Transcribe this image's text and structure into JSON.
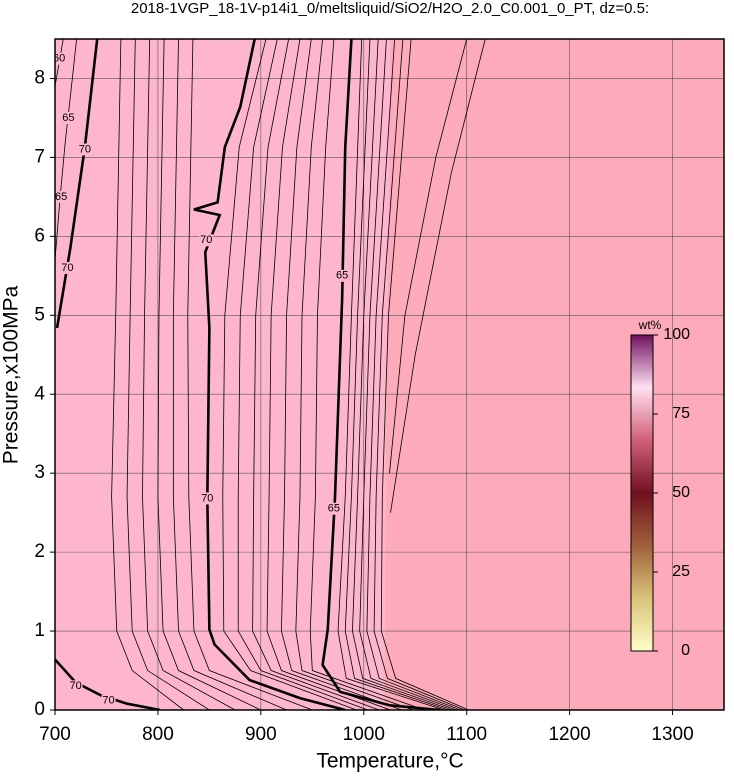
{
  "chart_data": {
    "type": "contour",
    "title": "2018-1VGP_18-1V-p14i1_0/meltsliquid/SiO2/H2O_2.0_C0.001_0_PT, dz=0.5:",
    "x_label": "Temperature,°C",
    "y_label": "Pressure,x100MPa",
    "xlim": [
      700,
      1350
    ],
    "ylim": [
      0,
      8.5
    ],
    "xticks": [
      700,
      800,
      900,
      1000,
      1100,
      1200,
      1300
    ],
    "yticks": [
      0,
      1,
      2,
      3,
      4,
      5,
      6,
      7,
      8
    ],
    "grid": true,
    "background": "#feb6cf",
    "regions": [
      {
        "color": "#fdaaba",
        "x": [
          1020,
          1022,
          1026,
          1350,
          1350
        ],
        "y": [
          0,
          4,
          8.5,
          8.5,
          0
        ]
      }
    ],
    "contours": [
      {
        "bold": true,
        "level": 70,
        "x": [
          894,
          880,
          865,
          858,
          835,
          860,
          846,
          850,
          848,
          850,
          855,
          889,
          938,
          982
        ],
        "y": [
          8.5,
          7.64,
          7.13,
          6.43,
          6.34,
          6.27,
          5.8,
          4.84,
          2.68,
          1.02,
          0.83,
          0.38,
          0.15,
          0
        ],
        "label_x": [
          847,
          848
        ],
        "label_y": [
          5.95,
          2.68
        ]
      },
      {
        "bold": true,
        "level": 65,
        "x": [
          988,
          982,
          979,
          972,
          965,
          960,
          977,
          1025,
          1074
        ],
        "y": [
          8.5,
          7.13,
          5.22,
          2.68,
          1.02,
          0.57,
          0.23,
          0.06,
          0
        ],
        "label_x": [
          979,
          971
        ],
        "label_y": [
          5.5,
          2.55
        ]
      },
      {
        "bold": true,
        "level": 70,
        "x": [
          702,
          715,
          729,
          741
        ],
        "y": [
          4.84,
          5.86,
          7.13,
          8.5
        ],
        "label_x": [
          712,
          729
        ],
        "label_y": [
          5.6,
          7.1
        ]
      },
      {
        "bold": true,
        "level": 70,
        "x": [
          700,
          720,
          744,
          770,
          802
        ],
        "y": [
          0.64,
          0.35,
          0.19,
          0.08,
          0
        ],
        "label_x": [
          720,
          752
        ],
        "label_y": [
          0.3,
          0.12
        ]
      },
      {
        "bold": false,
        "level": 65,
        "x": [
          700,
          705,
          710,
          716,
          721
        ],
        "y": [
          5.7,
          6.5,
          7.2,
          7.9,
          8.5
        ],
        "label_x": [
          706,
          713
        ],
        "label_y": [
          6.5,
          7.5
        ]
      },
      {
        "bold": false,
        "level": 60,
        "x": [
          700,
          704,
          708
        ],
        "y": [
          7.9,
          8.2,
          8.5
        ],
        "label_x": [
          704
        ],
        "label_y": [
          8.25
        ]
      },
      {
        "bold": false,
        "x": [
          905,
          879,
          865,
          863,
          864,
          890,
          993
        ],
        "y": [
          8.5,
          7.13,
          5,
          2.7,
          1,
          0.5,
          0
        ]
      },
      {
        "bold": false,
        "x": [
          916,
          893,
          880,
          878,
          878,
          900,
          1004
        ],
        "y": [
          8.5,
          7.13,
          5,
          2.7,
          1,
          0.5,
          0
        ]
      },
      {
        "bold": false,
        "x": [
          927,
          907,
          895,
          893,
          892,
          910,
          1015
        ],
        "y": [
          8.5,
          7.13,
          5,
          2.7,
          1,
          0.5,
          0
        ]
      },
      {
        "bold": false,
        "x": [
          938,
          921,
          910,
          908,
          906,
          920,
          1026
        ],
        "y": [
          8.5,
          7.13,
          5,
          2.7,
          1,
          0.5,
          0
        ]
      },
      {
        "bold": false,
        "x": [
          949,
          935,
          925,
          923,
          920,
          930,
          1037
        ],
        "y": [
          8.5,
          7.13,
          5,
          2.7,
          1,
          0.5,
          0
        ]
      },
      {
        "bold": false,
        "x": [
          960,
          949,
          940,
          938,
          934,
          940,
          1048
        ],
        "y": [
          8.5,
          7.13,
          5,
          2.7,
          1,
          0.5,
          0
        ]
      },
      {
        "bold": false,
        "x": [
          971,
          963,
          955,
          953,
          948,
          950,
          1059
        ],
        "y": [
          8.5,
          7.13,
          5,
          2.7,
          1,
          0.5,
          0
        ]
      },
      {
        "bold": false,
        "x": [
          998,
          988,
          982,
          975,
          983,
          1078
        ],
        "y": [
          8.5,
          5,
          2.7,
          1,
          0.4,
          0
        ]
      },
      {
        "bold": false,
        "x": [
          1006,
          994,
          988,
          982,
          991,
          1082
        ],
        "y": [
          8.5,
          5,
          2.7,
          1,
          0.4,
          0
        ]
      },
      {
        "bold": false,
        "x": [
          1014,
          1000,
          994,
          989,
          999,
          1086
        ],
        "y": [
          8.5,
          5,
          2.7,
          1,
          0.4,
          0
        ]
      },
      {
        "bold": false,
        "x": [
          1022,
          1006,
          1000,
          996,
          1007,
          1090
        ],
        "y": [
          8.5,
          5,
          2.7,
          1,
          0.4,
          0
        ]
      },
      {
        "bold": false,
        "x": [
          1030,
          1012,
          1006,
          1003,
          1015,
          1094
        ],
        "y": [
          8.5,
          5,
          2.7,
          1,
          0.4,
          0
        ]
      },
      {
        "bold": false,
        "x": [
          1038,
          1018,
          1012,
          1010,
          1023,
          1098
        ],
        "y": [
          8.5,
          5,
          2.7,
          1,
          0.4,
          0
        ]
      },
      {
        "bold": false,
        "x": [
          1046,
          1024,
          1018,
          1017,
          1031,
          1102
        ],
        "y": [
          8.5,
          5,
          2.7,
          1,
          0.4,
          0
        ]
      },
      {
        "bold": false,
        "x": [
          1025,
          1040,
          1070,
          1100
        ],
        "y": [
          3,
          5,
          7,
          8.5
        ]
      },
      {
        "bold": false,
        "x": [
          1026,
          1050,
          1085,
          1118
        ],
        "y": [
          2.5,
          4.5,
          6.8,
          8.5
        ]
      },
      {
        "bold": false,
        "x": [
          764,
          759,
          755,
          760,
          775,
          825
        ],
        "y": [
          8.5,
          5,
          2.7,
          1,
          0.5,
          0
        ]
      },
      {
        "bold": false,
        "x": [
          778,
          773,
          770,
          775,
          790,
          850
        ],
        "y": [
          8.5,
          5,
          2.7,
          1,
          0.5,
          0
        ]
      },
      {
        "bold": false,
        "x": [
          792,
          787,
          785,
          790,
          805,
          875
        ],
        "y": [
          8.5,
          5,
          2.7,
          1,
          0.5,
          0
        ]
      },
      {
        "bold": false,
        "x": [
          806,
          801,
          800,
          805,
          820,
          900
        ],
        "y": [
          8.5,
          5,
          2.7,
          1,
          0.5,
          0
        ]
      },
      {
        "bold": false,
        "x": [
          820,
          815,
          815,
          820,
          835,
          925
        ],
        "y": [
          8.5,
          5,
          2.7,
          1,
          0.5,
          0
        ]
      },
      {
        "bold": false,
        "x": [
          834,
          829,
          830,
          835,
          850,
          950
        ],
        "y": [
          8.5,
          5,
          2.7,
          1,
          0.5,
          0
        ]
      }
    ],
    "colorbar": {
      "label": "wt%",
      "lim": [
        0,
        100
      ],
      "ticks": [
        0,
        25,
        50,
        75,
        100
      ],
      "colors": [
        "#fffec8",
        "#d9c47a",
        "#a0603a",
        "#701020",
        "#d06078",
        "#ffe0f0",
        "#701060"
      ]
    }
  }
}
